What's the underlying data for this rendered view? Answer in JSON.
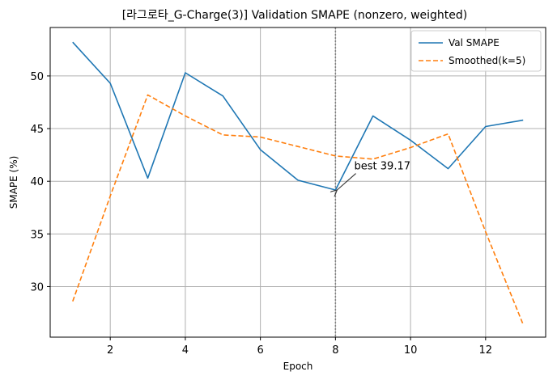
{
  "chart_data": {
    "type": "line",
    "title": "[라그로타_G-Charge(3)] Validation SMAPE (nonzero, weighted)",
    "xlabel": "Epoch",
    "ylabel": "SMAPE (%)",
    "xlim": [
      0.4,
      13.6
    ],
    "ylim": [
      25.2,
      54.6
    ],
    "xticks": [
      2,
      4,
      6,
      8,
      10,
      12
    ],
    "yticks": [
      30,
      35,
      40,
      45,
      50
    ],
    "grid": true,
    "legend_position": "top-right",
    "series": [
      {
        "name": "Val SMAPE",
        "style": "solid",
        "color": "#1f77b4",
        "x": [
          1,
          2,
          3,
          4,
          5,
          6,
          7,
          8,
          9,
          10,
          11,
          12,
          13
        ],
        "values": [
          53.2,
          49.3,
          40.3,
          50.3,
          48.1,
          43.0,
          40.1,
          39.17,
          46.2,
          43.9,
          41.2,
          45.2,
          45.8
        ]
      },
      {
        "name": "Smoothed(k=5)",
        "style": "dashed",
        "color": "#ff7f0e",
        "x": [
          1,
          2,
          3,
          4,
          5,
          6,
          7,
          8,
          9,
          10,
          11,
          12,
          13
        ],
        "values": [
          28.6,
          38.6,
          48.2,
          46.2,
          44.4,
          44.2,
          43.3,
          42.4,
          42.1,
          43.2,
          44.5,
          35.2,
          26.4
        ]
      }
    ],
    "vline": {
      "x": 8,
      "color": "#808080",
      "style": "dotted"
    },
    "annotation": {
      "text": "best 39.17",
      "x": 8,
      "y": 39.17,
      "text_x": 8.5,
      "text_y": 41.2
    }
  }
}
